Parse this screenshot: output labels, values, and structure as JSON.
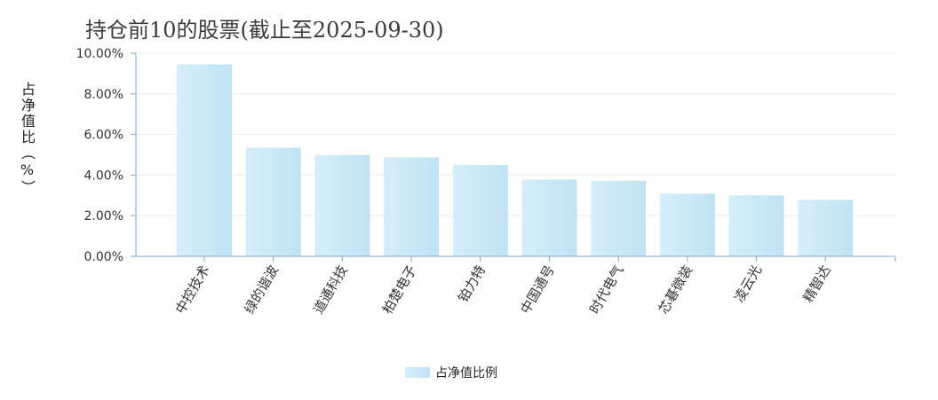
{
  "title": "持仓前10的股票(截止至2025-09-30)",
  "chart_data": {
    "type": "bar",
    "title": "持仓前10的股票(截止至2025-09-30)",
    "ylabel": "占净值比（%）",
    "xlabel": "",
    "ylim": [
      0,
      10
    ],
    "yticks": [
      "0.00%",
      "2.00%",
      "4.00%",
      "6.00%",
      "8.00%",
      "10.00%"
    ],
    "categories": [
      "中控技术",
      "绿的谐波",
      "道通科技",
      "柏楚电子",
      "铂力特",
      "中国通号",
      "时代电气",
      "芯碁微装",
      "凌云光",
      "精智达"
    ],
    "series": [
      {
        "name": "占净值比例",
        "values": [
          9.45,
          5.35,
          4.98,
          4.87,
          4.5,
          3.78,
          3.72,
          3.08,
          3.0,
          2.78
        ]
      }
    ],
    "grid": true,
    "legend": "bottom-center"
  },
  "colors": {
    "bar_start": "#d6eef9",
    "bar_end": "#bfe3f3",
    "axis": "#7fa7c9",
    "grid": "#e8ecf3"
  }
}
